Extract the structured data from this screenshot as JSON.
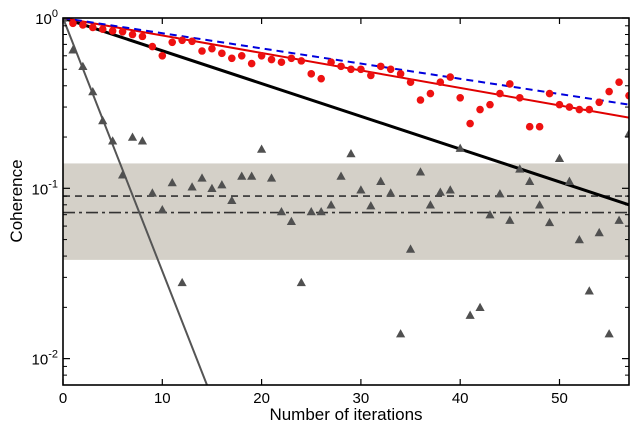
{
  "chart_data": {
    "type": "scatter",
    "title": "",
    "xlabel": "Number of iterations",
    "ylabel": "Coherence",
    "xlim": [
      0,
      57
    ],
    "ylim": [
      0.007,
      1.0
    ],
    "yscale": "log",
    "grid": false,
    "legend": "none",
    "x_ticks": [
      {
        "value": 0,
        "label": "0"
      },
      {
        "value": 10,
        "label": "10"
      },
      {
        "value": 20,
        "label": "20"
      },
      {
        "value": 30,
        "label": "30"
      },
      {
        "value": 40,
        "label": "40"
      },
      {
        "value": 50,
        "label": "50"
      }
    ],
    "y_ticks": [
      {
        "value": 0.01,
        "base": "10",
        "exp": "-2"
      },
      {
        "value": 0.1,
        "base": "10",
        "exp": "-1"
      },
      {
        "value": 1,
        "base": "10",
        "exp": "0"
      }
    ],
    "band": {
      "ymin": 0.038,
      "ymax": 0.14,
      "color": "#d4d0c8"
    },
    "hlines": [
      {
        "y": 0.09,
        "style": "dashed",
        "color": "#333333"
      },
      {
        "y": 0.072,
        "style": "dashdot",
        "color": "#333333"
      }
    ],
    "lines": [
      {
        "style": "solid",
        "color": "#000000",
        "x": [
          0,
          57
        ],
        "y": [
          1.0,
          0.08
        ]
      },
      {
        "style": "solid",
        "color": "#e00000",
        "x": [
          0,
          57
        ],
        "y": [
          1.0,
          0.26
        ]
      },
      {
        "style": "dashed",
        "color": "#0000dd",
        "x": [
          0,
          57
        ],
        "y": [
          1.0,
          0.31
        ]
      },
      {
        "style": "solid",
        "color": "#555555",
        "x": [
          0,
          14.5
        ],
        "y": [
          1.0,
          0.007
        ]
      }
    ],
    "series": [
      {
        "marker": "circle",
        "color": "#ee1111",
        "x": [
          0,
          1,
          2,
          3,
          4,
          5,
          6,
          7,
          8,
          9,
          10,
          11,
          12,
          13,
          14,
          15,
          16,
          17,
          18,
          19,
          20,
          21,
          22,
          23,
          24,
          25,
          26,
          27,
          28,
          29,
          30,
          31,
          32,
          33,
          34,
          35,
          36,
          37,
          38,
          39,
          40,
          41,
          42,
          43,
          44,
          45,
          46,
          47,
          48,
          49,
          50,
          51,
          52,
          53,
          54,
          55,
          56,
          57
        ],
        "y": [
          1.0,
          0.93,
          0.91,
          0.88,
          0.86,
          0.84,
          0.83,
          0.8,
          0.78,
          0.68,
          0.6,
          0.72,
          0.74,
          0.73,
          0.64,
          0.66,
          0.62,
          0.58,
          0.6,
          0.54,
          0.6,
          0.57,
          0.55,
          0.58,
          0.56,
          0.47,
          0.44,
          0.55,
          0.52,
          0.5,
          0.5,
          0.46,
          0.52,
          0.5,
          0.47,
          0.42,
          0.33,
          0.36,
          0.42,
          0.45,
          0.34,
          0.24,
          0.29,
          0.31,
          0.36,
          0.41,
          0.34,
          0.23,
          0.23,
          0.36,
          0.31,
          0.3,
          0.29,
          0.29,
          0.32,
          0.37,
          0.42,
          0.35
        ]
      },
      {
        "marker": "triangle",
        "color": "#505050",
        "x": [
          0,
          1,
          2,
          3,
          4,
          5,
          6,
          7,
          8,
          9,
          10,
          11,
          12,
          13,
          14,
          15,
          16,
          17,
          18,
          19,
          20,
          21,
          22,
          23,
          24,
          25,
          26,
          27,
          28,
          29,
          30,
          31,
          32,
          33,
          34,
          35,
          36,
          37,
          38,
          39,
          40,
          41,
          42,
          43,
          44,
          45,
          46,
          47,
          48,
          49,
          50,
          51,
          52,
          53,
          54,
          55,
          56,
          57
        ],
        "y": [
          1.0,
          0.65,
          0.52,
          0.37,
          0.25,
          0.19,
          0.12,
          0.2,
          0.19,
          0.094,
          0.075,
          0.108,
          0.028,
          0.102,
          0.115,
          0.1,
          0.105,
          0.085,
          0.118,
          0.118,
          0.17,
          0.115,
          0.073,
          0.064,
          0.028,
          0.073,
          0.073,
          0.08,
          0.118,
          0.16,
          0.098,
          0.079,
          0.11,
          0.094,
          0.014,
          0.044,
          0.125,
          0.08,
          0.095,
          0.098,
          0.172,
          0.018,
          0.02,
          0.07,
          0.093,
          0.065,
          0.13,
          0.11,
          0.08,
          0.063,
          0.15,
          0.11,
          0.05,
          0.025,
          0.055,
          0.014,
          0.065,
          0.21
        ]
      }
    ]
  }
}
